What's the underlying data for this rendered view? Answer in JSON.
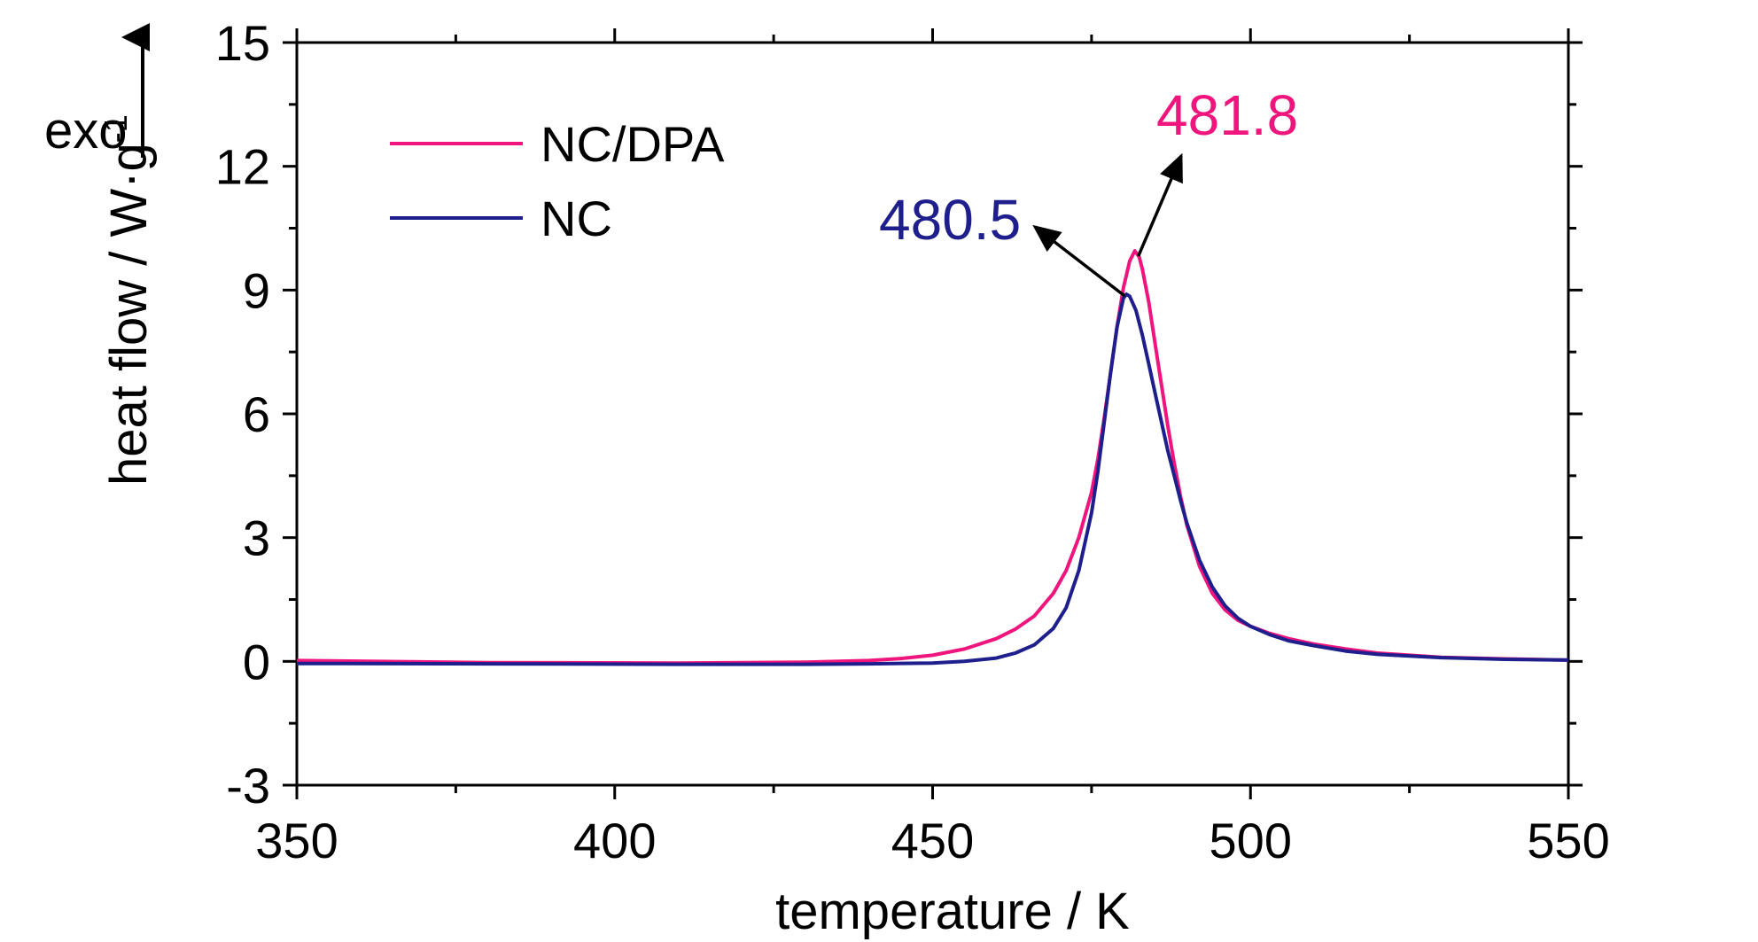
{
  "chart_data": {
    "type": "line",
    "xlabel": "temperature / K",
    "ylabel": "heat flow / W·g",
    "ylabel_sup": "-1",
    "xlim": [
      350,
      550
    ],
    "ylim": [
      -3,
      15
    ],
    "xticks": [
      350,
      400,
      450,
      500,
      550
    ],
    "yticks": [
      -3,
      0,
      3,
      6,
      9,
      12,
      15
    ],
    "grid": false,
    "legend_position": "top-left",
    "exo_label": "exo",
    "series": [
      {
        "name": "NC/DPA",
        "color": "#f0147d",
        "x": [
          350,
          380,
          410,
          430,
          440,
          445,
          450,
          455,
          460,
          463,
          466,
          469,
          471,
          473,
          475,
          476,
          477,
          478,
          479,
          480,
          481,
          481.8,
          482.5,
          483,
          484,
          485,
          486,
          487,
          488,
          489,
          490,
          492,
          494,
          496,
          498,
          500,
          503,
          506,
          510,
          515,
          520,
          530,
          540,
          550
        ],
        "y": [
          0.02,
          -0.03,
          -0.04,
          -0.02,
          0.02,
          0.07,
          0.15,
          0.3,
          0.55,
          0.78,
          1.1,
          1.65,
          2.2,
          3.0,
          4.1,
          4.9,
          5.9,
          7.0,
          8.1,
          9.05,
          9.7,
          9.95,
          9.8,
          9.5,
          8.7,
          7.7,
          6.7,
          5.7,
          4.8,
          4.0,
          3.3,
          2.3,
          1.65,
          1.25,
          1.0,
          0.85,
          0.68,
          0.55,
          0.42,
          0.3,
          0.2,
          0.1,
          0.06,
          0.03
        ]
      },
      {
        "name": "NC",
        "color": "#1e1e8c",
        "x": [
          350,
          380,
          410,
          430,
          440,
          450,
          455,
          460,
          463,
          466,
          469,
          471,
          473,
          475,
          476,
          477,
          478,
          479,
          480,
          480.5,
          481,
          482,
          483,
          484,
          485,
          486,
          487,
          488,
          489,
          490,
          492,
          494,
          496,
          498,
          500,
          503,
          506,
          510,
          515,
          520,
          530,
          540,
          550
        ],
        "y": [
          -0.05,
          -0.06,
          -0.07,
          -0.07,
          -0.06,
          -0.04,
          0.0,
          0.08,
          0.2,
          0.4,
          0.8,
          1.3,
          2.2,
          3.6,
          4.6,
          5.8,
          7.0,
          8.1,
          8.8,
          8.9,
          8.85,
          8.5,
          7.9,
          7.2,
          6.5,
          5.8,
          5.1,
          4.5,
          3.9,
          3.35,
          2.45,
          1.8,
          1.35,
          1.05,
          0.85,
          0.65,
          0.5,
          0.38,
          0.25,
          0.17,
          0.09,
          0.05,
          0.03
        ]
      }
    ],
    "annotations": [
      {
        "text": "481.8",
        "series": "NC/DPA",
        "peak_x": 481.8,
        "peak_y": 9.95,
        "color": "#f0147d"
      },
      {
        "text": "480.5",
        "series": "NC",
        "peak_x": 480.5,
        "peak_y": 8.9,
        "color": "#1e1e8c"
      }
    ]
  }
}
